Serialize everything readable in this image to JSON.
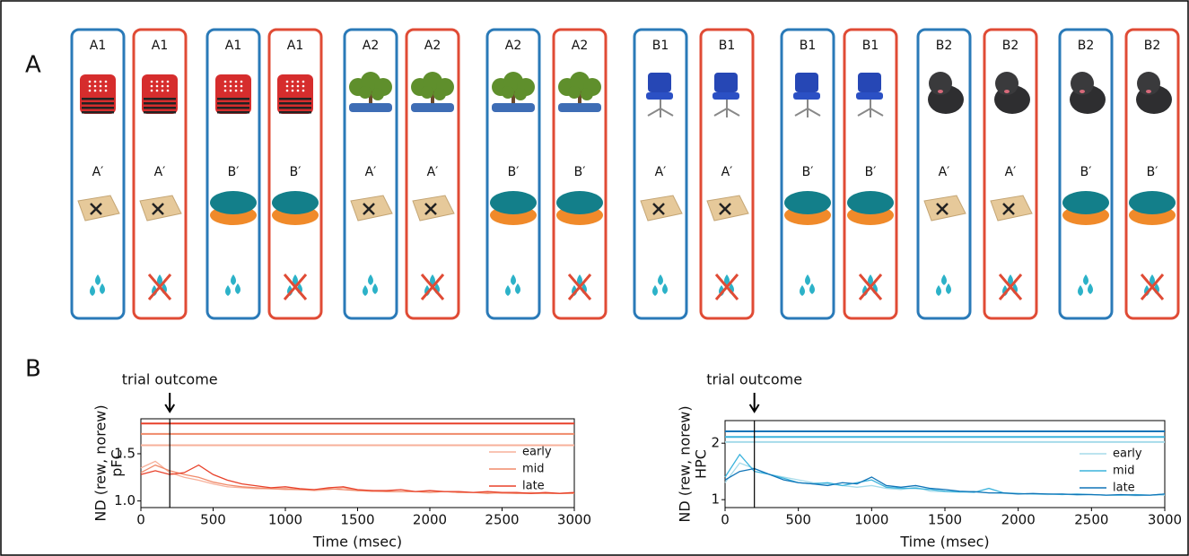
{
  "panel_labels": [
    "A",
    "B"
  ],
  "panel_a": {
    "cards": [
      {
        "label": "A1",
        "cue": "A′",
        "color": "#2a7ab8"
      },
      {
        "label": "A1",
        "cue": "A′",
        "color": "#e04b35"
      },
      {
        "label": "A1",
        "cue": "B′",
        "color": "#2a7ab8"
      },
      {
        "label": "A1",
        "cue": "B′",
        "color": "#e04b35"
      },
      {
        "label": "A2",
        "cue": "A′",
        "color": "#2a7ab8"
      },
      {
        "label": "A2",
        "cue": "A′",
        "color": "#e04b35"
      },
      {
        "label": "A2",
        "cue": "B′",
        "color": "#2a7ab8"
      },
      {
        "label": "A2",
        "cue": "B′",
        "color": "#e04b35"
      },
      {
        "label": "B1",
        "cue": "A′",
        "color": "#2a7ab8"
      },
      {
        "label": "B1",
        "cue": "A′",
        "color": "#e04b35"
      },
      {
        "label": "B1",
        "cue": "B′",
        "color": "#2a7ab8"
      },
      {
        "label": "B1",
        "cue": "B′",
        "color": "#e04b35"
      },
      {
        "label": "B2",
        "cue": "A′",
        "color": "#2a7ab8"
      },
      {
        "label": "B2",
        "cue": "A′",
        "color": "#e04b35"
      },
      {
        "label": "B2",
        "cue": "B′",
        "color": "#2a7ab8"
      },
      {
        "label": "B2",
        "cue": "B′",
        "color": "#e04b35"
      }
    ]
  },
  "chart_data": [
    {
      "type": "line",
      "xlabel": "Time (msec)",
      "ylabel": "ND (rew, norew)",
      "region": "pFC",
      "annotation": {
        "text": "trial outcome",
        "x": 200
      },
      "xlim": [
        0,
        3000
      ],
      "xticks": [
        0,
        500,
        1000,
        1500,
        2000,
        2500,
        3000
      ],
      "ylim": [
        0.93,
        1.87
      ],
      "yticks": [
        {
          "value": 1,
          "label": "1.0"
        },
        1.5
      ],
      "x": [
        0,
        100,
        200,
        300,
        400,
        500,
        600,
        700,
        800,
        900,
        1000,
        1100,
        1200,
        1300,
        1400,
        1500,
        1600,
        1700,
        1800,
        1900,
        2000,
        2100,
        2200,
        2300,
        2400,
        2500,
        2600,
        2700,
        2800,
        2900,
        3000
      ],
      "significance_lines": [
        {
          "y": 1.82,
          "color": "#e8412a"
        },
        {
          "y": 1.71,
          "color": "#f08a6a"
        },
        {
          "y": 1.59,
          "color": "#f7b09a"
        }
      ],
      "series": [
        {
          "name": "early",
          "color": "#f7b09a",
          "values": [
            1.35,
            1.42,
            1.3,
            1.25,
            1.22,
            1.18,
            1.15,
            1.14,
            1.13,
            1.13,
            1.12,
            1.12,
            1.11,
            1.12,
            1.14,
            1.11,
            1.1,
            1.1,
            1.1,
            1.1,
            1.09,
            1.1,
            1.09,
            1.09,
            1.09,
            1.08,
            1.08,
            1.09,
            1.08,
            1.08,
            1.09
          ]
        },
        {
          "name": "mid",
          "color": "#f08a6a",
          "values": [
            1.3,
            1.38,
            1.32,
            1.28,
            1.25,
            1.2,
            1.17,
            1.15,
            1.14,
            1.13,
            1.13,
            1.12,
            1.12,
            1.13,
            1.12,
            1.11,
            1.11,
            1.1,
            1.1,
            1.1,
            1.09,
            1.1,
            1.09,
            1.09,
            1.08,
            1.09,
            1.08,
            1.08,
            1.08,
            1.08,
            1.08
          ]
        },
        {
          "name": "late",
          "color": "#e8412a",
          "values": [
            1.28,
            1.32,
            1.28,
            1.3,
            1.38,
            1.28,
            1.22,
            1.18,
            1.16,
            1.14,
            1.15,
            1.13,
            1.12,
            1.14,
            1.15,
            1.12,
            1.11,
            1.11,
            1.12,
            1.1,
            1.11,
            1.1,
            1.1,
            1.09,
            1.1,
            1.09,
            1.09,
            1.08,
            1.09,
            1.08,
            1.09
          ]
        }
      ]
    },
    {
      "type": "line",
      "xlabel": "Time (msec)",
      "ylabel": "ND (rew, norew)",
      "region": "HPC",
      "annotation": {
        "text": "trial outcome",
        "x": 200
      },
      "xlim": [
        0,
        3000
      ],
      "xticks": [
        0,
        500,
        1000,
        1500,
        2000,
        2500,
        3000
      ],
      "ylim": [
        0.86,
        2.4
      ],
      "yticks": [
        1,
        2
      ],
      "x": [
        0,
        100,
        200,
        300,
        400,
        500,
        600,
        700,
        800,
        900,
        1000,
        1100,
        1200,
        1300,
        1400,
        1500,
        1600,
        1700,
        1800,
        1900,
        2000,
        2100,
        2200,
        2300,
        2400,
        2500,
        2600,
        2700,
        2800,
        2900,
        3000
      ],
      "significance_lines": [
        {
          "y": 2.21,
          "color": "#1175b8"
        },
        {
          "y": 2.11,
          "color": "#3bb3dc"
        },
        {
          "y": 2.02,
          "color": "#a6dbea"
        }
      ],
      "series": [
        {
          "name": "early",
          "color": "#a6dbea",
          "values": [
            1.3,
            1.65,
            1.55,
            1.45,
            1.4,
            1.35,
            1.3,
            1.28,
            1.25,
            1.22,
            1.25,
            1.2,
            1.18,
            1.22,
            1.15,
            1.14,
            1.13,
            1.15,
            1.12,
            1.11,
            1.1,
            1.1,
            1.09,
            1.1,
            1.08,
            1.09,
            1.08,
            1.08,
            1.07,
            1.08,
            1.08
          ]
        },
        {
          "name": "mid",
          "color": "#3bb3dc",
          "values": [
            1.4,
            1.8,
            1.5,
            1.45,
            1.38,
            1.3,
            1.28,
            1.3,
            1.25,
            1.3,
            1.35,
            1.22,
            1.2,
            1.2,
            1.18,
            1.15,
            1.14,
            1.13,
            1.2,
            1.12,
            1.11,
            1.1,
            1.1,
            1.09,
            1.1,
            1.09,
            1.08,
            1.08,
            1.09,
            1.08,
            1.1
          ]
        },
        {
          "name": "late",
          "color": "#1175b8",
          "values": [
            1.35,
            1.5,
            1.55,
            1.45,
            1.35,
            1.3,
            1.28,
            1.25,
            1.3,
            1.28,
            1.4,
            1.25,
            1.22,
            1.25,
            1.2,
            1.18,
            1.15,
            1.14,
            1.12,
            1.12,
            1.1,
            1.11,
            1.1,
            1.1,
            1.09,
            1.09,
            1.08,
            1.09,
            1.08,
            1.08,
            1.1
          ]
        }
      ]
    }
  ]
}
